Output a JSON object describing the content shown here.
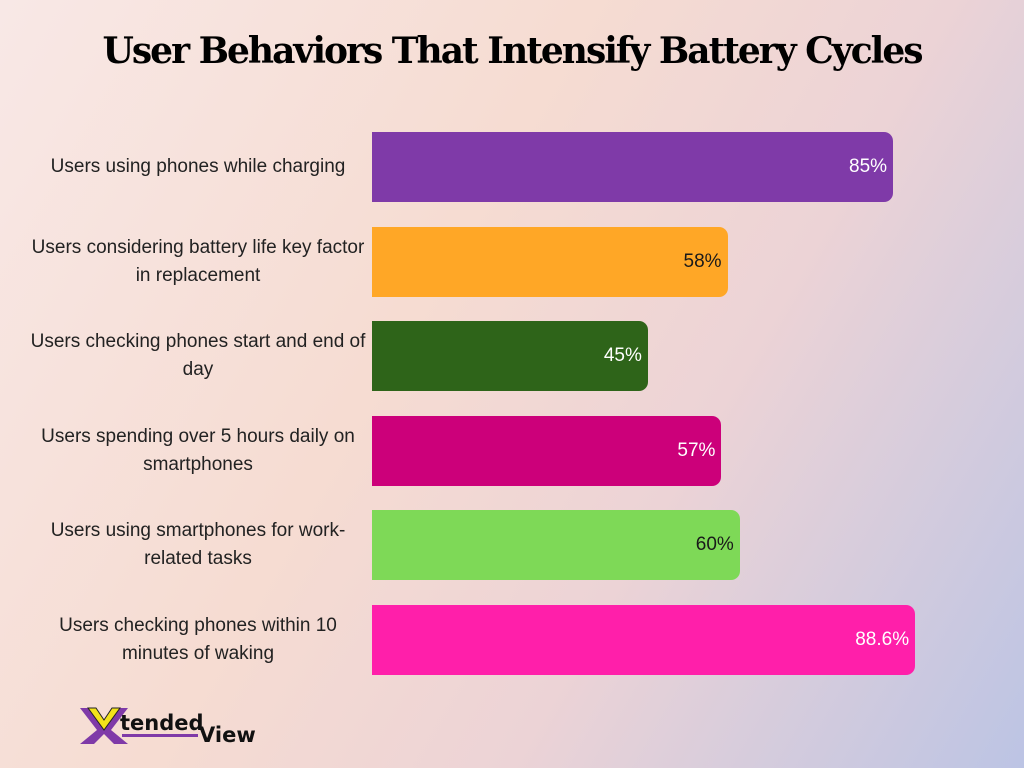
{
  "chart_data": {
    "type": "bar",
    "orientation": "horizontal",
    "title": "User Behaviors That Intensify Battery Cycles",
    "categories": [
      "Users using phones while charging",
      "Users considering battery life key factor in replacement",
      "Users checking phones start and end of day",
      "Users spending over 5 hours daily on smartphones",
      "Users using smartphones for work-related tasks",
      "Users checking phones within 10 minutes of waking"
    ],
    "values": [
      85,
      58,
      45,
      57,
      60,
      88.6
    ],
    "data_labels": [
      "85%",
      "58%",
      "45%",
      "57%",
      "60%",
      "88.6%"
    ],
    "colors": [
      "#7f3aa8",
      "#ffa726",
      "#2e6419",
      "#cc007a",
      "#7ed957",
      "#ff1faa"
    ],
    "label_colors": [
      "#ffffff",
      "#1a1a1a",
      "#ffffff",
      "#ffffff",
      "#1a1a1a",
      "#ffffff"
    ],
    "xlim": [
      0,
      100
    ],
    "grid": false
  },
  "logo": {
    "text_1": "X",
    "text_2": "tended",
    "text_3": "View"
  }
}
